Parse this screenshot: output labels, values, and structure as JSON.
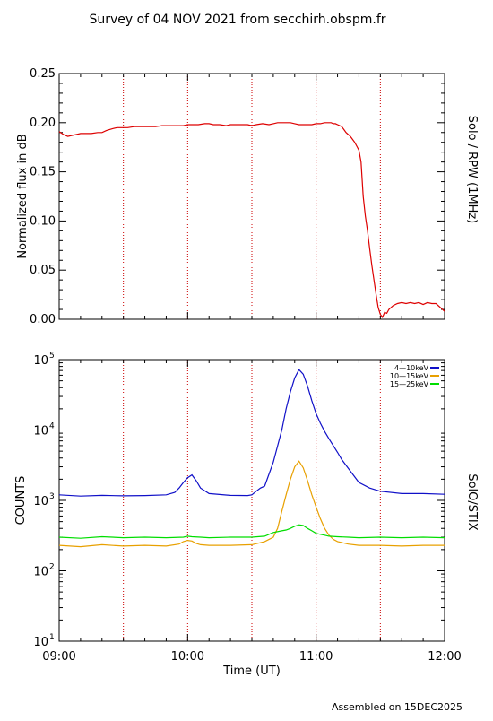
{
  "title": "Survey of 04 NOV 2021 from secchirh.obspm.fr",
  "footer": "Assembled on 15DEC2025",
  "colors": {
    "rpw": "#dd0000",
    "stix_low": "#1010c8",
    "stix_mid": "#e8a000",
    "stix_high": "#00dd00",
    "marker": "#cc0000"
  },
  "chart_data": [
    {
      "type": "line",
      "title": "",
      "xlabel": "",
      "ylabel": "Normalized flux in dB",
      "right_label": "Solo / RPW (1MHz)",
      "xlim": [
        0,
        180
      ],
      "ylim": [
        0,
        0.25
      ],
      "grid": false,
      "marker_lines_min": [
        30,
        60,
        90,
        120,
        150
      ],
      "y_ticks": [
        {
          "v": 0.0,
          "label": "0.00"
        },
        {
          "v": 0.05,
          "label": "0.05"
        },
        {
          "v": 0.1,
          "label": "0.10"
        },
        {
          "v": 0.15,
          "label": "0.15"
        },
        {
          "v": 0.2,
          "label": "0.20"
        },
        {
          "v": 0.25,
          "label": "0.25"
        }
      ],
      "series": [
        {
          "x": [
            0,
            2,
            4,
            6,
            8,
            10,
            12,
            15,
            18,
            20,
            22,
            25,
            27,
            30,
            32,
            35,
            38,
            40,
            42,
            45,
            48,
            50,
            52,
            55,
            58,
            60,
            62,
            65,
            68,
            70,
            72,
            75,
            78,
            80,
            82,
            85,
            88,
            90,
            92,
            95,
            98,
            100,
            102,
            105,
            108,
            110,
            112,
            115,
            118,
            120,
            122,
            124,
            126,
            127,
            128,
            129,
            130,
            131,
            132,
            133,
            134,
            135,
            136,
            137,
            138,
            139,
            140,
            141,
            142,
            143,
            144,
            145,
            146,
            147,
            148,
            149,
            150,
            151,
            152,
            153,
            154,
            156,
            158,
            160,
            162,
            164,
            166,
            168,
            170,
            172,
            174,
            176,
            178,
            180
          ],
          "y": [
            0.191,
            0.188,
            0.186,
            0.187,
            0.188,
            0.189,
            0.189,
            0.189,
            0.19,
            0.19,
            0.192,
            0.194,
            0.195,
            0.195,
            0.195,
            0.196,
            0.196,
            0.196,
            0.196,
            0.196,
            0.197,
            0.197,
            0.197,
            0.197,
            0.197,
            0.198,
            0.198,
            0.198,
            0.199,
            0.199,
            0.198,
            0.198,
            0.197,
            0.198,
            0.198,
            0.198,
            0.198,
            0.197,
            0.198,
            0.199,
            0.198,
            0.199,
            0.2,
            0.2,
            0.2,
            0.199,
            0.198,
            0.198,
            0.198,
            0.199,
            0.199,
            0.2,
            0.2,
            0.2,
            0.199,
            0.199,
            0.198,
            0.197,
            0.196,
            0.193,
            0.19,
            0.188,
            0.186,
            0.183,
            0.18,
            0.176,
            0.172,
            0.16,
            0.125,
            0.105,
            0.09,
            0.072,
            0.055,
            0.04,
            0.025,
            0.012,
            0.005,
            0.002,
            0.007,
            0.006,
            0.01,
            0.014,
            0.016,
            0.017,
            0.016,
            0.017,
            0.016,
            0.017,
            0.015,
            0.017,
            0.016,
            0.016,
            0.012,
            0.008
          ]
        }
      ]
    },
    {
      "type": "line",
      "title": "",
      "xlabel": "Time (UT)",
      "ylabel": "COUNTS",
      "right_label": "SolO/STIX",
      "xlim": [
        0,
        180
      ],
      "ylim": [
        1,
        5
      ],
      "y_scale": "log",
      "grid": false,
      "legend_position": "top-right",
      "marker_lines_min": [
        30,
        60,
        90,
        120,
        150
      ],
      "x_ticks": [
        {
          "v": 0,
          "label": "09:00"
        },
        {
          "v": 60,
          "label": "10:00"
        },
        {
          "v": 120,
          "label": "11:00"
        },
        {
          "v": 180,
          "label": "12:00"
        }
      ],
      "y_ticks": [
        {
          "v": 1,
          "label": "10",
          "exp": "1"
        },
        {
          "v": 2,
          "label": "10",
          "exp": "2"
        },
        {
          "v": 3,
          "label": "10",
          "exp": "3"
        },
        {
          "v": 4,
          "label": "10",
          "exp": "4"
        },
        {
          "v": 5,
          "label": "10",
          "exp": "5"
        }
      ],
      "series": [
        {
          "name": "4—10keV",
          "color_key": "stix_low",
          "x": [
            0,
            10,
            20,
            30,
            40,
            50,
            54,
            56,
            58,
            60,
            62,
            64,
            66,
            70,
            80,
            88,
            90,
            92,
            94,
            96,
            100,
            104,
            106,
            108,
            110,
            112,
            114,
            116,
            118,
            120,
            122,
            124,
            126,
            128,
            130,
            132,
            136,
            140,
            145,
            150,
            160,
            170,
            180
          ],
          "y": [
            1200,
            1150,
            1180,
            1160,
            1170,
            1200,
            1300,
            1500,
            1800,
            2100,
            2300,
            1900,
            1500,
            1250,
            1180,
            1170,
            1200,
            1350,
            1500,
            1600,
            3500,
            10000,
            20000,
            35000,
            55000,
            72000,
            62000,
            42000,
            26000,
            17000,
            12500,
            9500,
            7500,
            6000,
            4800,
            3800,
            2600,
            1800,
            1500,
            1350,
            1250,
            1250,
            1220
          ]
        },
        {
          "name": "10—15keV",
          "color_key": "stix_mid",
          "x": [
            0,
            10,
            20,
            30,
            40,
            50,
            56,
            58,
            60,
            62,
            64,
            66,
            70,
            80,
            90,
            96,
            100,
            102,
            104,
            106,
            108,
            110,
            112,
            114,
            116,
            118,
            120,
            122,
            124,
            126,
            128,
            130,
            135,
            140,
            150,
            160,
            170,
            180
          ],
          "y": [
            230,
            220,
            235,
            225,
            230,
            225,
            240,
            260,
            270,
            265,
            245,
            235,
            230,
            230,
            235,
            260,
            300,
            400,
            700,
            1200,
            2000,
            3000,
            3600,
            2900,
            1900,
            1200,
            800,
            550,
            400,
            320,
            280,
            260,
            240,
            230,
            230,
            225,
            230,
            230
          ]
        },
        {
          "name": "15—25keV",
          "color_key": "stix_high",
          "x": [
            0,
            10,
            20,
            30,
            40,
            50,
            58,
            60,
            62,
            66,
            70,
            80,
            90,
            96,
            100,
            104,
            106,
            108,
            110,
            112,
            114,
            116,
            118,
            120,
            122,
            124,
            126,
            130,
            135,
            140,
            150,
            160,
            170,
            180
          ],
          "y": [
            300,
            290,
            305,
            295,
            300,
            295,
            300,
            310,
            305,
            300,
            295,
            300,
            300,
            310,
            350,
            370,
            380,
            400,
            430,
            450,
            440,
            400,
            370,
            340,
            330,
            320,
            310,
            305,
            300,
            295,
            300,
            295,
            300,
            295
          ]
        }
      ]
    }
  ]
}
